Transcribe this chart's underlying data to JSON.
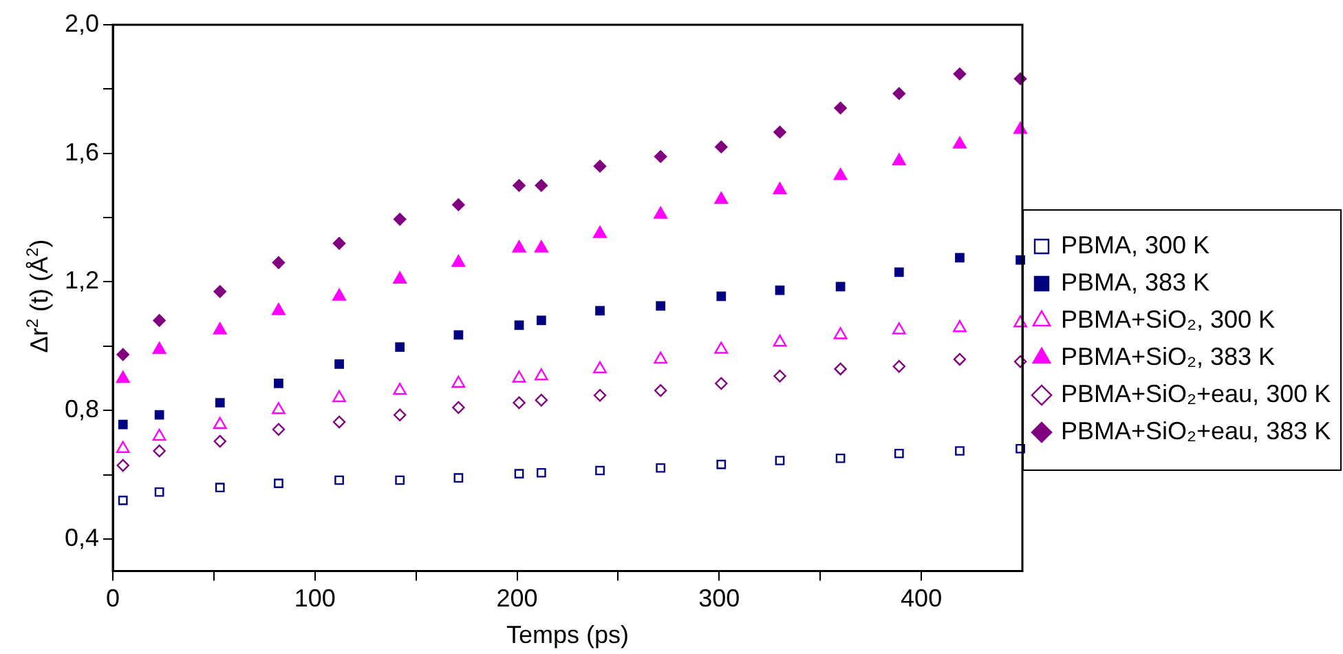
{
  "chart_data": {
    "type": "scatter",
    "xlabel": "Temps (ps)",
    "ylabel": "Δr$^{2}$ (t) (Å$^{2}$)",
    "x": [
      5,
      23,
      53,
      82,
      112,
      142,
      171,
      201,
      212,
      241,
      271,
      301,
      330,
      360,
      389,
      419,
      449
    ],
    "xlim": [
      0,
      450
    ],
    "xticks": [
      0,
      {
        "value": 50,
        "label": null
      },
      100,
      {
        "value": 150,
        "label": null
      },
      200,
      {
        "value": 250,
        "label": null
      },
      300,
      {
        "value": 350,
        "label": null
      },
      400
    ],
    "ylim": [
      0.3,
      2.0
    ],
    "yticks": [
      {
        "value": 0.4,
        "label": "0,4"
      },
      {
        "value": 0.6,
        "label": null
      },
      {
        "value": 0.8,
        "label": "0,8"
      },
      {
        "value": 1.0,
        "label": null
      },
      {
        "value": 1.2,
        "label": "1,2"
      },
      {
        "value": 1.4,
        "label": null
      },
      {
        "value": 1.6,
        "label": "1,6"
      },
      {
        "value": 1.8,
        "label": null
      },
      {
        "value": 2.0,
        "label": "2,0"
      }
    ],
    "grid": false,
    "legend": "right",
    "series": [
      {
        "name": "PBMA, 300 K",
        "color": "#000080",
        "marker": "square",
        "values": [
          0.52,
          0.546,
          0.56,
          0.573,
          0.583,
          0.583,
          0.59,
          0.603,
          0.606,
          0.613,
          0.621,
          0.632,
          0.644,
          0.651,
          0.666,
          0.674,
          0.681
        ]
      },
      {
        "name": "PBMA, 383 K",
        "color": "#000080",
        "marker": "square",
        "values": [
          0.756,
          0.786,
          0.824,
          0.884,
          0.944,
          0.997,
          1.035,
          1.065,
          1.08,
          1.11,
          1.125,
          1.155,
          1.174,
          1.185,
          1.23,
          1.275,
          1.268
        ]
      },
      {
        "name": "PBMA+SiO₂, 300 K",
        "color": "#ff00ff",
        "marker": "triangle",
        "values": [
          0.681,
          0.719,
          0.756,
          0.802,
          0.839,
          0.862,
          0.884,
          0.9,
          0.907,
          0.929,
          0.959,
          0.99,
          1.012,
          1.035,
          1.05,
          1.057,
          1.072
        ]
      },
      {
        "name": "PBMA+SiO₂, 383 K",
        "color": "#ff00ff",
        "marker": "triangle",
        "values": [
          0.899,
          0.989,
          1.05,
          1.11,
          1.155,
          1.208,
          1.26,
          1.305,
          1.305,
          1.35,
          1.41,
          1.456,
          1.486,
          1.53,
          1.576,
          1.628,
          1.674
        ]
      },
      {
        "name": "PBMA+SiO₂+eau, 300 K",
        "color": "#800080",
        "marker": "diamond",
        "values": [
          0.629,
          0.674,
          0.704,
          0.741,
          0.764,
          0.786,
          0.809,
          0.824,
          0.832,
          0.847,
          0.862,
          0.884,
          0.907,
          0.929,
          0.937,
          0.959,
          0.952
        ]
      },
      {
        "name": "PBMA+SiO₂+eau, 383 K",
        "color": "#800080",
        "marker": "diamond",
        "values": [
          0.974,
          1.08,
          1.17,
          1.26,
          1.32,
          1.395,
          1.44,
          1.5,
          1.5,
          1.56,
          1.59,
          1.62,
          1.666,
          1.741,
          1.786,
          1.847,
          1.832
        ]
      }
    ]
  }
}
